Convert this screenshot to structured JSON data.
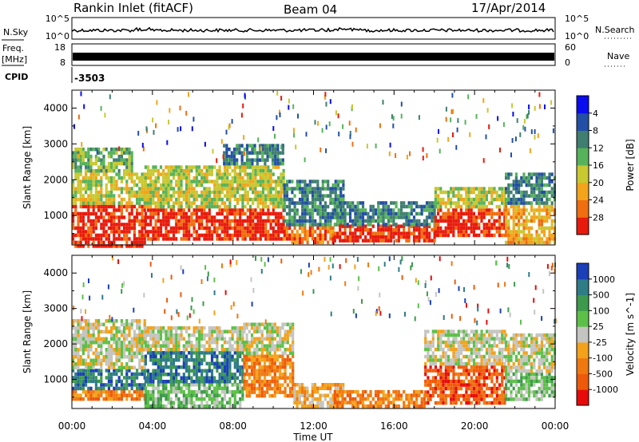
{
  "header": {
    "station": "Rankin Inlet (fitACF)",
    "beam": "Beam 04",
    "date": "17/Apr/2014"
  },
  "strip": {
    "nsky_label": "N.Sky",
    "nsky_ticks": [
      "10^5",
      "10^0"
    ],
    "nsearch_label": "N.Search",
    "nsearch_ticks": [
      "10^5",
      "10^0"
    ],
    "freq_label": "Freq.",
    "freq_unit": "[MHz]",
    "freq_ticks": [
      "18",
      "8"
    ],
    "nave_label": "Nave",
    "nave_ticks": [
      "60",
      "0"
    ],
    "cpid_label": "CPID",
    "cpid_value": "-3503"
  },
  "chart_data": [
    {
      "type": "heatmap",
      "title": "",
      "ylabel": "Slant Range [km]",
      "xlabel": "",
      "x_ticks": [
        "00:00",
        "04:00",
        "08:00",
        "12:00",
        "16:00",
        "20:00",
        "00:00"
      ],
      "y_ticks": [
        1000,
        2000,
        3000,
        4000
      ],
      "ylim": [
        180,
        4500
      ],
      "xlim_hours": [
        0,
        24
      ],
      "colorbar": {
        "label": "Power [dB]",
        "ticks": [
          "4",
          "8",
          "12",
          "16",
          "20",
          "24",
          "28"
        ],
        "colors": [
          "#0a0cf0",
          "#234fa6",
          "#3f7e70",
          "#56b35a",
          "#c8c830",
          "#f3a41a",
          "#f06e10",
          "#e81a0c"
        ]
      },
      "bands": [
        {
          "h0": 0.0,
          "h1": 3.6,
          "r0": 180,
          "r1": 1300,
          "level": 7
        },
        {
          "h0": 0.0,
          "h1": 3.6,
          "r0": 1300,
          "r1": 2200,
          "level": 4
        },
        {
          "h0": 0.0,
          "h1": 3.0,
          "r0": 2200,
          "r1": 2900,
          "level": 3
        },
        {
          "h0": 3.6,
          "h1": 10.5,
          "r0": 300,
          "r1": 1200,
          "level": 7
        },
        {
          "h0": 3.6,
          "h1": 10.5,
          "r0": 1200,
          "r1": 2400,
          "level": 4
        },
        {
          "h0": 7.5,
          "h1": 10.5,
          "r0": 2400,
          "r1": 3000,
          "level": 2
        },
        {
          "h0": 10.5,
          "h1": 13.0,
          "r0": 250,
          "r1": 700,
          "level": 6
        },
        {
          "h0": 10.5,
          "h1": 13.5,
          "r0": 700,
          "r1": 2000,
          "level": 2
        },
        {
          "h0": 13.0,
          "h1": 18.0,
          "r0": 250,
          "r1": 750,
          "level": 7
        },
        {
          "h0": 13.0,
          "h1": 18.0,
          "r0": 750,
          "r1": 1400,
          "level": 2
        },
        {
          "h0": 18.0,
          "h1": 21.5,
          "r0": 400,
          "r1": 1200,
          "level": 7
        },
        {
          "h0": 18.0,
          "h1": 21.5,
          "r0": 1200,
          "r1": 1800,
          "level": 4
        },
        {
          "h0": 21.5,
          "h1": 24.0,
          "r0": 250,
          "r1": 1300,
          "level": 5
        },
        {
          "h0": 21.5,
          "h1": 24.0,
          "r0": 1300,
          "r1": 2200,
          "level": 2
        }
      ]
    },
    {
      "type": "heatmap",
      "title": "",
      "ylabel": "Slant Range [km]",
      "xlabel": "Time UT",
      "x_ticks": [
        "00:00",
        "04:00",
        "08:00",
        "12:00",
        "16:00",
        "20:00",
        "00:00"
      ],
      "y_ticks": [
        1000,
        2000,
        3000,
        4000
      ],
      "ylim": [
        180,
        4500
      ],
      "xlim_hours": [
        0,
        24
      ],
      "colorbar": {
        "label": "Velocity [m s^-1]",
        "ticks": [
          "1000",
          "500",
          "100",
          "25",
          "-25",
          "-100",
          "-500",
          "-1000"
        ],
        "colors": [
          "#1a3fb8",
          "#2e7c86",
          "#3d9a4c",
          "#5cc048",
          "#c4c4c0",
          "#f3a21a",
          "#f07810",
          "#ee5a0a",
          "#e80a0a"
        ]
      },
      "bands": [
        {
          "h0": 0.0,
          "h1": 3.6,
          "r0": 400,
          "r1": 700,
          "level": 6
        },
        {
          "h0": 0.0,
          "h1": 3.6,
          "r0": 700,
          "r1": 1300,
          "level": 1
        },
        {
          "h0": 0.0,
          "h1": 3.6,
          "r0": 1300,
          "r1": 2700,
          "level": 4
        },
        {
          "h0": 3.6,
          "h1": 8.5,
          "r0": 250,
          "r1": 900,
          "level": 3
        },
        {
          "h0": 3.6,
          "h1": 8.5,
          "r0": 900,
          "r1": 1800,
          "level": 1
        },
        {
          "h0": 3.6,
          "h1": 8.5,
          "r0": 1800,
          "r1": 2500,
          "level": 4
        },
        {
          "h0": 8.5,
          "h1": 11.0,
          "r0": 500,
          "r1": 1700,
          "level": 6
        },
        {
          "h0": 8.5,
          "h1": 11.0,
          "r0": 1700,
          "r1": 2600,
          "level": 4
        },
        {
          "h0": 11.0,
          "h1": 13.5,
          "r0": 250,
          "r1": 900,
          "level": 5
        },
        {
          "h0": 13.0,
          "h1": 17.5,
          "r0": 250,
          "r1": 700,
          "level": 6
        },
        {
          "h0": 17.5,
          "h1": 21.5,
          "r0": 300,
          "r1": 1400,
          "level": 7
        },
        {
          "h0": 17.5,
          "h1": 21.5,
          "r0": 1400,
          "r1": 2400,
          "level": 4
        },
        {
          "h0": 21.5,
          "h1": 24.0,
          "r0": 400,
          "r1": 1200,
          "level": 3
        },
        {
          "h0": 21.5,
          "h1": 24.0,
          "r0": 1200,
          "r1": 2300,
          "level": 4
        }
      ]
    }
  ]
}
